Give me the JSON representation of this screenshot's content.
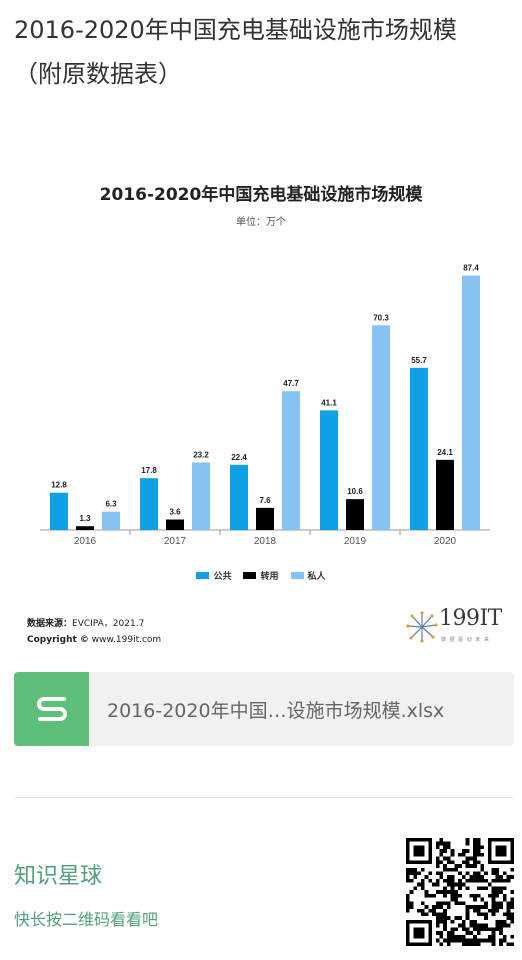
{
  "post": {
    "title_line1": "2016-2020年中国充电基础设施市场规模",
    "title_line2": "（附原数据表）"
  },
  "chart_data": {
    "type": "bar",
    "title": "2016-2020年中国充电基础设施市场规模",
    "subtitle": "单位：万个",
    "categories": [
      "2016",
      "2017",
      "2018",
      "2019",
      "2020"
    ],
    "series": [
      {
        "name": "公共",
        "values": [
          12.8,
          17.8,
          22.4,
          41.1,
          55.7
        ],
        "color": "#0fa0e6"
      },
      {
        "name": "转用",
        "values": [
          1.3,
          3.6,
          7.6,
          10.6,
          24.1
        ],
        "color": "#000000"
      },
      {
        "name": "私人",
        "values": [
          6.3,
          23.2,
          47.7,
          70.3,
          87.4
        ],
        "color": "#86c3f2"
      }
    ],
    "ylim": [
      0,
      90
    ],
    "grid": false,
    "legend": "bottom-center"
  },
  "source": {
    "label": "数据来源：",
    "value": "EVCIPA，2021.7",
    "copyright_label": "Copyright ©",
    "copyright_value": "www.199it.com"
  },
  "logo": {
    "text": "199IT",
    "tagline": "数 据 驱 动 未 来",
    "icon": "dandelion-icon"
  },
  "attachment": {
    "icon": "spreadsheet-s-icon",
    "icon_color": "#5ebf7a",
    "filename": "2016-2020年中国…设施市场规模.xlsx"
  },
  "footer": {
    "title": "知识星球",
    "subtitle": "快长按二维码看看吧",
    "accent": "#52a07a",
    "qr_icon": "qr-code-icon"
  }
}
